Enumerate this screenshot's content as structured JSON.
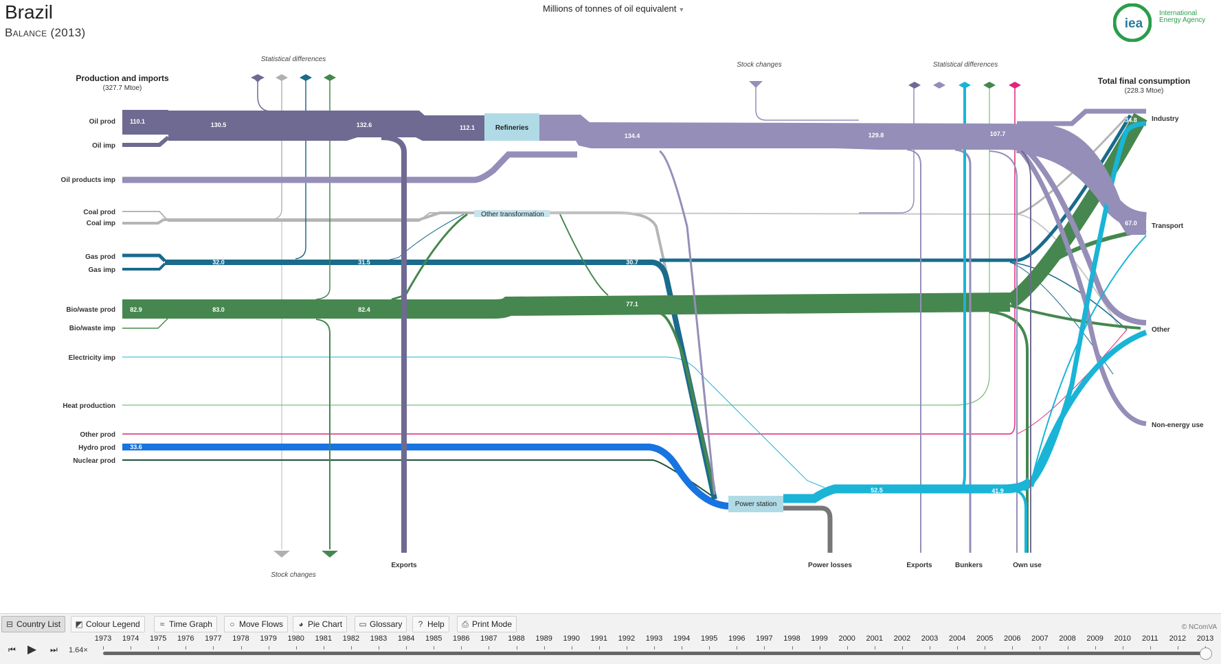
{
  "header": {
    "country": "Brazil",
    "balance_label": "Balance (2013)",
    "unit": "Millions of tonnes of oil equivalent"
  },
  "logo": {
    "mark": "iea",
    "line1": "International",
    "line2": "Energy Agency"
  },
  "diagram": {
    "production_title": "Production and imports",
    "production_total": "(327.7 Mtoe)",
    "consumption_title": "Total final consumption",
    "consumption_total": "(228.3 Mtoe)",
    "statistical_differences": "Statistical differences",
    "stock_changes": "Stock  changes",
    "stock_changes_bottom": "Stock changes",
    "sources": [
      "Oil prod",
      "Oil imp",
      "Oil products imp",
      "Coal prod",
      "Coal imp",
      "Gas prod",
      "Gas imp",
      "Bio/waste prod",
      "Bio/waste imp",
      "Electricity imp",
      "Heat production",
      "Other prod",
      "Hydro prod",
      "Nuclear prod"
    ],
    "sinks": [
      "Industry",
      "Transport",
      "Other",
      "Non-energy use"
    ],
    "nodes": {
      "refineries": "Refineries",
      "other_transformation": "Other transformation",
      "power_station": "Power station"
    },
    "outflows": {
      "exports_left": "Exports",
      "power_losses": "Power losses",
      "exports_right": "Exports",
      "bunkers": "Bunkers",
      "own_use": "Own use"
    },
    "flow_values": {
      "oil_prod": "110.1",
      "oil_1": "130.5",
      "oil_2": "132.6",
      "oil_3": "112.1",
      "oilprod_1": "134.4",
      "oilprod_2": "129.8",
      "oilprod_3": "107.7",
      "gas_1": "32.0",
      "gas_2": "31.5",
      "gas_3": "30.7",
      "bio_prod": "82.9",
      "bio_1": "83.0",
      "bio_2": "82.4",
      "bio_3": "77.1",
      "hydro": "33.6",
      "elec_1": "52.5",
      "elec_2": "41.9",
      "industry": "34.8",
      "transport": "67.0"
    },
    "colors": {
      "crude_oil": "#6e6a92",
      "oil_products": "#948eb8",
      "coal": "#b0b0b0",
      "gas": "#1a6b8c",
      "biofuels": "#46874f",
      "electricity": "#1ab4d6",
      "hydro": "#1874e0",
      "other": "#e0257a",
      "losses": "#777777",
      "node": "#b0dbe6"
    }
  },
  "toolbar": {
    "buttons": [
      "Country List",
      "Colour Legend",
      "Time Graph",
      "Move Flows",
      "Pie Chart",
      "Glossary",
      "Help",
      "Print Mode"
    ],
    "copyright": "© NComVA",
    "years": [
      "1973",
      "1974",
      "1975",
      "1976",
      "1977",
      "1978",
      "1979",
      "1980",
      "1981",
      "1982",
      "1983",
      "1984",
      "1985",
      "1986",
      "1987",
      "1988",
      "1989",
      "1990",
      "1991",
      "1992",
      "1993",
      "1994",
      "1995",
      "1996",
      "1997",
      "1998",
      "1999",
      "2000",
      "2001",
      "2002",
      "2003",
      "2004",
      "2005",
      "2006",
      "2007",
      "2008",
      "2009",
      "2010",
      "2011",
      "2012",
      "2013"
    ],
    "speed": "1.64×",
    "selected_year": "2013"
  }
}
